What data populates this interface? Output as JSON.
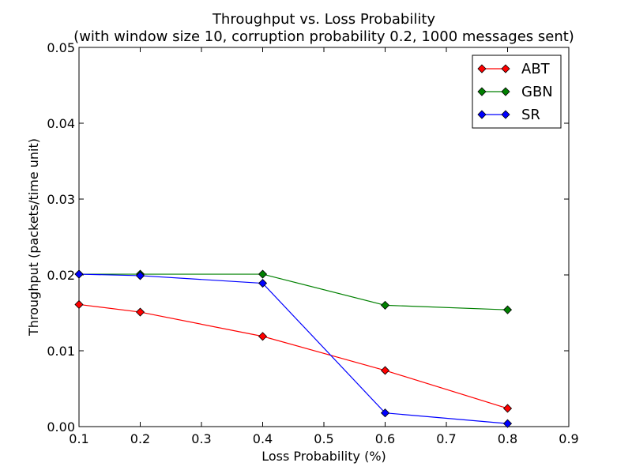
{
  "chart_data": {
    "type": "line",
    "title": "Throughput vs. Loss Probability",
    "subtitle": "(with window size 10, corruption probability 0.2, 1000 messages sent)",
    "xlabel": "Loss Probability (%)",
    "ylabel": "Throughput (packets/time unit)",
    "xlim": [
      0.1,
      0.9
    ],
    "ylim": [
      0.0,
      0.05
    ],
    "xticks": [
      "0.1",
      "0.2",
      "0.3",
      "0.4",
      "0.5",
      "0.6",
      "0.7",
      "0.8",
      "0.9"
    ],
    "yticks": [
      "0.00",
      "0.01",
      "0.02",
      "0.03",
      "0.04",
      "0.05"
    ],
    "grid": false,
    "legend_position": "top-right",
    "x": [
      0.1,
      0.2,
      0.4,
      0.6,
      0.8
    ],
    "series": [
      {
        "name": "ABT",
        "color": "#ff0000",
        "values": [
          0.0161,
          0.0151,
          0.0119,
          0.0074,
          0.0024
        ]
      },
      {
        "name": "GBN",
        "color": "#008000",
        "values": [
          0.0201,
          0.0201,
          0.0201,
          0.016,
          0.0154
        ]
      },
      {
        "name": "SR",
        "color": "#0000ff",
        "values": [
          0.0201,
          0.0199,
          0.0189,
          0.0018,
          0.0004
        ]
      }
    ]
  }
}
